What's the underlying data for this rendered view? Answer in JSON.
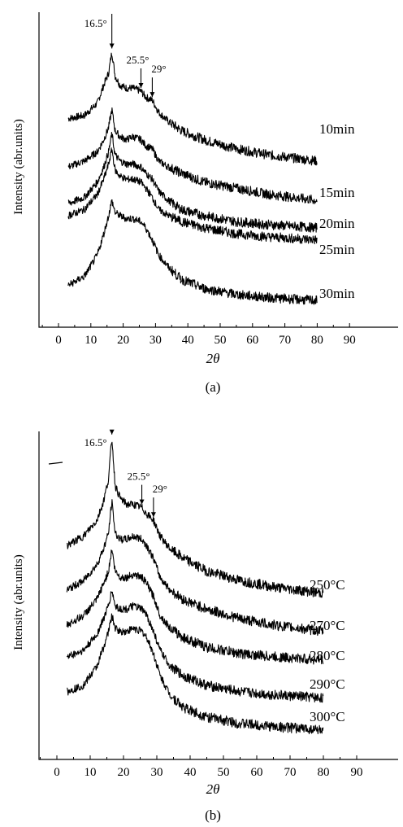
{
  "chart_data": [
    {
      "type": "line",
      "panel_label": "(a)",
      "xlabel": "2θ",
      "ylabel": "Intensity (abr.units)",
      "xlim": [
        -5,
        90
      ],
      "xticks": [
        0,
        10,
        20,
        30,
        40,
        50,
        60,
        70,
        80,
        90
      ],
      "annotations": [
        {
          "text": "16.5°",
          "x": 16.5
        },
        {
          "text": "25.5°",
          "x": 25.5
        },
        {
          "text": "29°",
          "x": 29
        }
      ],
      "series": [
        {
          "name": "10min",
          "x": [
            3,
            8,
            12,
            14,
            15.5,
            16.5,
            17.5,
            19,
            21,
            23,
            25.5,
            27,
            29,
            31,
            34,
            38,
            45,
            55,
            65,
            80
          ],
          "values": [
            0.65,
            0.66,
            0.7,
            0.76,
            0.8,
            0.87,
            0.79,
            0.76,
            0.75,
            0.75,
            0.74,
            0.72,
            0.71,
            0.67,
            0.64,
            0.61,
            0.58,
            0.55,
            0.53,
            0.51
          ]
        },
        {
          "name": "15min",
          "x": [
            3,
            8,
            12,
            14,
            15.5,
            16.5,
            17.5,
            19,
            21,
            23,
            25.5,
            27,
            29,
            31,
            34,
            38,
            45,
            55,
            65,
            80
          ],
          "values": [
            0.49,
            0.51,
            0.54,
            0.58,
            0.62,
            0.68,
            0.61,
            0.59,
            0.58,
            0.59,
            0.58,
            0.56,
            0.55,
            0.51,
            0.49,
            0.47,
            0.44,
            0.42,
            0.4,
            0.38
          ]
        },
        {
          "name": "20min",
          "x": [
            3,
            8,
            12,
            14,
            15.5,
            16.5,
            17.5,
            19,
            21,
            23,
            25.5,
            27,
            29,
            31,
            34,
            38,
            45,
            55,
            65,
            80
          ],
          "values": [
            0.37,
            0.39,
            0.44,
            0.49,
            0.54,
            0.6,
            0.53,
            0.51,
            0.5,
            0.5,
            0.49,
            0.47,
            0.45,
            0.41,
            0.38,
            0.35,
            0.33,
            0.31,
            0.3,
            0.29
          ]
        },
        {
          "name": "25min",
          "x": [
            3,
            8,
            12,
            14,
            15.5,
            16.5,
            17.5,
            19,
            21,
            23,
            25.5,
            27,
            29,
            31,
            34,
            38,
            45,
            55,
            65,
            80
          ],
          "values": [
            0.33,
            0.35,
            0.4,
            0.45,
            0.5,
            0.55,
            0.48,
            0.46,
            0.45,
            0.45,
            0.44,
            0.42,
            0.39,
            0.35,
            0.33,
            0.31,
            0.29,
            0.27,
            0.26,
            0.25
          ]
        },
        {
          "name": "30min",
          "x": [
            3,
            8,
            12,
            14,
            15.5,
            16.5,
            17.5,
            19,
            21,
            23,
            25.5,
            27,
            29,
            31,
            34,
            38,
            45,
            55,
            65,
            80
          ],
          "values": [
            0.1,
            0.13,
            0.2,
            0.27,
            0.33,
            0.38,
            0.34,
            0.33,
            0.32,
            0.32,
            0.31,
            0.29,
            0.25,
            0.2,
            0.16,
            0.12,
            0.09,
            0.07,
            0.06,
            0.05
          ]
        }
      ]
    },
    {
      "type": "line",
      "panel_label": "(b)",
      "xlabel": "2θ",
      "ylabel": "Intensity (abr.units)",
      "xlim": [
        -5,
        90
      ],
      "xticks": [
        0,
        10,
        20,
        30,
        40,
        50,
        60,
        70,
        80,
        90
      ],
      "annotations": [
        {
          "text": "16.5°",
          "x": 16.5
        },
        {
          "text": "25.5°",
          "x": 25.5
        },
        {
          "text": "29°",
          "x": 29
        }
      ],
      "series": [
        {
          "name": "250°C",
          "x": [
            3,
            8,
            12,
            14,
            15.5,
            16.5,
            17.5,
            19,
            21,
            23,
            25.5,
            27,
            29,
            31,
            34,
            38,
            45,
            55,
            65,
            80
          ],
          "values": [
            0.64,
            0.67,
            0.72,
            0.78,
            0.85,
            0.98,
            0.83,
            0.79,
            0.77,
            0.77,
            0.76,
            0.74,
            0.72,
            0.67,
            0.63,
            0.6,
            0.56,
            0.53,
            0.51,
            0.49
          ]
        },
        {
          "name": "270°C",
          "x": [
            3,
            8,
            12,
            14,
            15.5,
            16.5,
            17.5,
            19,
            21,
            23,
            25.5,
            27,
            29,
            31,
            34,
            38,
            45,
            55,
            65,
            80
          ],
          "values": [
            0.5,
            0.53,
            0.58,
            0.63,
            0.68,
            0.78,
            0.68,
            0.66,
            0.66,
            0.67,
            0.66,
            0.64,
            0.6,
            0.54,
            0.5,
            0.47,
            0.44,
            0.41,
            0.39,
            0.37
          ]
        },
        {
          "name": "280°C",
          "x": [
            3,
            8,
            12,
            14,
            15.5,
            16.5,
            17.5,
            19,
            21,
            23,
            25.5,
            27,
            29,
            31,
            34,
            38,
            45,
            55,
            65,
            80
          ],
          "values": [
            0.39,
            0.42,
            0.47,
            0.52,
            0.56,
            0.63,
            0.56,
            0.54,
            0.54,
            0.55,
            0.54,
            0.52,
            0.48,
            0.42,
            0.38,
            0.35,
            0.32,
            0.3,
            0.29,
            0.28
          ]
        },
        {
          "name": "290°C",
          "x": [
            3,
            8,
            12,
            14,
            15.5,
            16.5,
            17.5,
            19,
            21,
            23,
            25.5,
            27,
            29,
            31,
            34,
            38,
            45,
            55,
            65,
            80
          ],
          "values": [
            0.29,
            0.31,
            0.36,
            0.41,
            0.45,
            0.5,
            0.45,
            0.44,
            0.44,
            0.45,
            0.44,
            0.42,
            0.37,
            0.31,
            0.26,
            0.23,
            0.2,
            0.18,
            0.17,
            0.16
          ]
        },
        {
          "name": "300°C",
          "x": [
            3,
            8,
            12,
            14,
            15.5,
            16.5,
            17.5,
            19,
            21,
            23,
            25.5,
            27,
            29,
            31,
            34,
            38,
            45,
            55,
            65,
            80
          ],
          "values": [
            0.18,
            0.2,
            0.26,
            0.32,
            0.37,
            0.42,
            0.38,
            0.37,
            0.37,
            0.38,
            0.37,
            0.35,
            0.3,
            0.23,
            0.17,
            0.13,
            0.1,
            0.08,
            0.07,
            0.06
          ]
        }
      ]
    }
  ]
}
